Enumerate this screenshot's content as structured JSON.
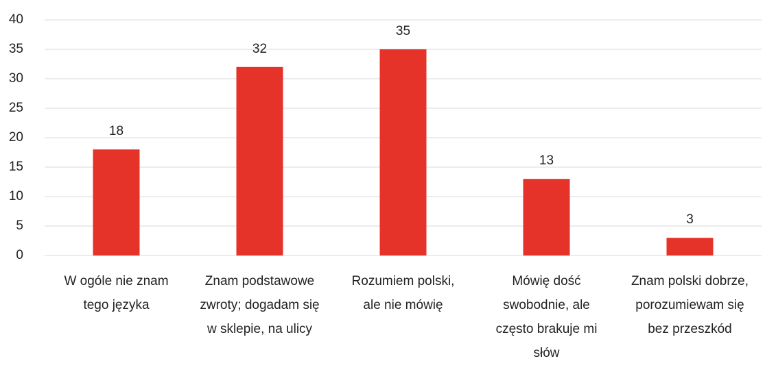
{
  "chart_data": {
    "type": "bar",
    "categories": [
      "W ogóle nie znam tego języka",
      "Znam podstawowe zwroty; dogadam się w sklepie, na ulicy",
      "Rozumiem polski, ale nie mówię",
      "Mówię dość swobodnie, ale często brakuje mi słów",
      "Znam polski dobrze, porozumiewam się bez przeszkód"
    ],
    "values": [
      18,
      32,
      35,
      13,
      3
    ],
    "color": "#e5332a",
    "ylim": [
      0,
      40
    ],
    "yticks": [
      0,
      5,
      10,
      15,
      20,
      25,
      30,
      35,
      40
    ],
    "grid": true,
    "value_labels_shown": true
  }
}
